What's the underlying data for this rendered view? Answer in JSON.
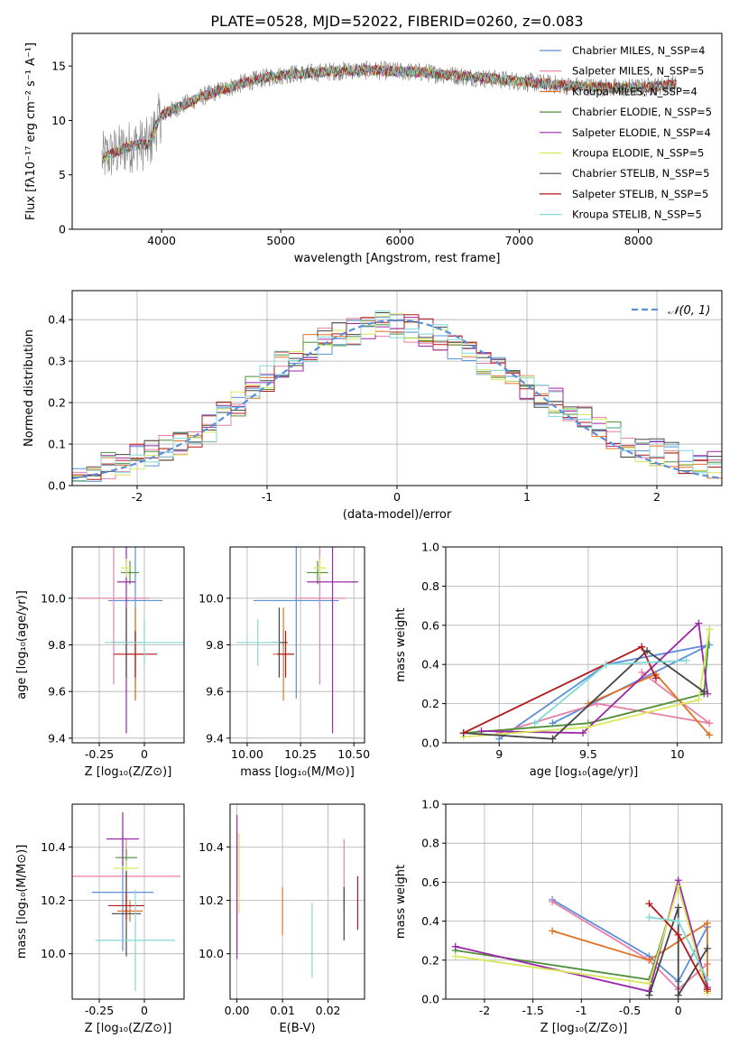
{
  "figure_title": "PLATE=0528, MJD=52022, FIBERID=0260, z=0.083",
  "colors": {
    "Chabrier MILES": "#5b8fd9",
    "Salpeter MILES": "#e87fa6",
    "Kroupa MILES": "#e07020",
    "Chabrier ELODIE": "#4f8f3a",
    "Salpeter ELODIE": "#9b28a8",
    "Kroupa ELODIE": "#d9e85a",
    "Chabrier STELIB": "#454545",
    "Salpeter STELIB": "#b0181a",
    "Kroupa STELIB": "#7fd9d6",
    "data": "#808080",
    "normal": "#5b8fd9"
  },
  "chart_data": [
    {
      "type": "line",
      "xlabel": "wavelength [Angstrom, rest frame]",
      "ylabel": "Flux [fλ10⁻¹⁷ erg cm⁻² s⁻¹ A⁻¹]",
      "xlim": [
        3250,
        8700
      ],
      "ylim": [
        0,
        18
      ],
      "xticks": [
        4000,
        5000,
        6000,
        7000,
        8000
      ],
      "yticks": [
        0,
        5,
        10,
        15
      ],
      "grid": false,
      "legend_position": "top-right",
      "legend": [
        "Chabrier MILES, N_SSP=4",
        "Salpeter MILES, N_SSP=5",
        "Kroupa MILES, N_SSP=4",
        "Chabrier ELODIE, N_SSP=5",
        "Salpeter ELODIE, N_SSP=4",
        "Kroupa ELODIE, N_SSP=5",
        "Chabrier STELIB, N_SSP=5",
        "Salpeter STELIB, N_SSP=5",
        "Kroupa STELIB, N_SSP=5"
      ],
      "continuum": {
        "x": [
          3500,
          3600,
          3700,
          3800,
          3900,
          3950,
          4000,
          4100,
          4300,
          4500,
          4700,
          4900,
          5100,
          5200,
          5400,
          5600,
          5800,
          6000,
          6200,
          6400,
          6600,
          6800,
          7000,
          7200,
          7400,
          7600,
          7800,
          8000,
          8200,
          8300
        ],
        "y": [
          6.5,
          7.0,
          7.5,
          7.8,
          7.8,
          9.5,
          10.5,
          11.0,
          12.0,
          12.8,
          13.5,
          14.0,
          14.3,
          14.3,
          14.5,
          14.6,
          14.6,
          14.5,
          14.4,
          14.2,
          14.0,
          13.8,
          13.6,
          13.4,
          13.2,
          13.1,
          13.0,
          13.0,
          13.2,
          13.3
        ]
      }
    },
    {
      "type": "histogram",
      "xlabel": "(data-model)/error",
      "ylabel": "Normed distribution",
      "xlim": [
        -2.5,
        2.5
      ],
      "ylim": [
        0,
        0.47
      ],
      "xticks": [
        -2,
        -1,
        0,
        1,
        2
      ],
      "yticks": [
        0.0,
        0.1,
        0.2,
        0.3,
        0.4
      ],
      "grid": true,
      "legend_position": "top-right",
      "legend": [
        "𝒩(0, 1)"
      ],
      "bins": [
        -2.5,
        2.5,
        45
      ],
      "approx_heights": [
        0.03,
        0.04,
        0.05,
        0.06,
        0.07,
        0.08,
        0.09,
        0.1,
        0.12,
        0.14,
        0.17,
        0.2,
        0.23,
        0.26,
        0.29,
        0.31,
        0.33,
        0.35,
        0.36,
        0.37,
        0.38,
        0.39,
        0.39,
        0.38,
        0.37,
        0.36,
        0.34,
        0.32,
        0.3,
        0.28,
        0.26,
        0.24,
        0.22,
        0.2,
        0.18,
        0.16,
        0.14,
        0.12,
        0.1,
        0.09,
        0.08,
        0.07,
        0.06,
        0.05,
        0.05
      ]
    },
    {
      "type": "scatter",
      "name": "age vs Z",
      "xlabel": "Z [log₁₀(Z/Z⊙)]",
      "ylabel": "age  [log₁₀(age/yr)]",
      "xlim": [
        -0.4,
        0.22
      ],
      "ylim": [
        9.38,
        10.22
      ],
      "xticks": [
        -0.25,
        0.0
      ],
      "ytick_labels": [
        "9.4",
        "9.6",
        "9.8",
        "10.0"
      ],
      "grid": true,
      "points": [
        {
          "model": "Chabrier MILES",
          "x": -0.05,
          "y": 9.99,
          "xerr": 0.15,
          "yerr": 0.42
        },
        {
          "model": "Salpeter MILES",
          "x": -0.17,
          "y": 10.0,
          "xerr": 0.2,
          "yerr": 0.37
        },
        {
          "model": "Kroupa MILES",
          "x": -0.05,
          "y": 9.76,
          "xerr": 0.05,
          "yerr": 0.2
        },
        {
          "model": "Chabrier ELODIE",
          "x": -0.08,
          "y": 10.11,
          "xerr": 0.05,
          "yerr": 0.05
        },
        {
          "model": "Salpeter ELODIE",
          "x": -0.1,
          "y": 10.07,
          "xerr": 0.05,
          "yerr": 0.65
        },
        {
          "model": "Kroupa ELODIE",
          "x": -0.1,
          "y": 10.13,
          "xerr": 0.03,
          "yerr": 0.04
        },
        {
          "model": "Chabrier STELIB",
          "x": -0.1,
          "y": 9.81,
          "xerr": 0.08,
          "yerr": 0.15
        },
        {
          "model": "Salpeter STELIB",
          "x": -0.05,
          "y": 9.76,
          "xerr": 0.12,
          "yerr": 0.1
        },
        {
          "model": "Kroupa STELIB",
          "x": 0.0,
          "y": 9.81,
          "xerr": 0.22,
          "yerr": 0.1
        }
      ]
    },
    {
      "type": "scatter",
      "name": "age vs mass",
      "xlabel": "mass [log₁₀(M/M⊙)]",
      "xlim": [
        9.92,
        10.55
      ],
      "ylim": [
        9.38,
        10.22
      ],
      "xticks": [
        10.0,
        10.25,
        10.5
      ],
      "xtick_labels": [
        "10.00",
        "10.25",
        "10.50"
      ],
      "ytick_labels": [
        "9.4",
        "9.6",
        "9.8",
        "10.0"
      ],
      "grid": true,
      "points": [
        {
          "model": "Chabrier MILES",
          "x": 10.23,
          "y": 9.99,
          "xerr": 0.2,
          "yerr": 0.42
        },
        {
          "model": "Salpeter MILES",
          "x": 10.34,
          "y": 10.0,
          "xerr": 0.12,
          "yerr": 0.37
        },
        {
          "model": "Kroupa MILES",
          "x": 10.17,
          "y": 9.76,
          "xerr": 0.05,
          "yerr": 0.2
        },
        {
          "model": "Chabrier ELODIE",
          "x": 10.33,
          "y": 10.11,
          "xerr": 0.05,
          "yerr": 0.05
        },
        {
          "model": "Salpeter ELODIE",
          "x": 10.4,
          "y": 10.07,
          "xerr": 0.12,
          "yerr": 0.65
        },
        {
          "model": "Kroupa ELODIE",
          "x": 10.34,
          "y": 10.13,
          "xerr": 0.03,
          "yerr": 0.04
        },
        {
          "model": "Chabrier STELIB",
          "x": 10.15,
          "y": 9.81,
          "xerr": 0.04,
          "yerr": 0.15
        },
        {
          "model": "Salpeter STELIB",
          "x": 10.18,
          "y": 9.76,
          "xerr": 0.04,
          "yerr": 0.1
        },
        {
          "model": "Kroupa STELIB",
          "x": 10.05,
          "y": 9.81,
          "xerr": 0.1,
          "yerr": 0.1
        }
      ]
    },
    {
      "type": "line",
      "name": "mass weight vs age",
      "xlabel": "age  [log₁₀(age/yr)]",
      "ylabel": "mass weight",
      "xlim": [
        8.7,
        10.25
      ],
      "ylim": [
        0,
        1
      ],
      "xticks": [
        9.0,
        9.5,
        10.0
      ],
      "ytick_labels": [
        "0.0",
        "0.2",
        "0.4",
        "0.6",
        "0.8",
        "1.0"
      ],
      "grid": true,
      "series": [
        {
          "model": "Chabrier MILES",
          "x": [
            9.0,
            9.6,
            10.18,
            9.3
          ],
          "y": [
            0.02,
            0.4,
            0.5,
            0.1
          ]
        },
        {
          "model": "Salpeter MILES",
          "x": [
            9.0,
            9.55,
            10.18,
            9.8
          ],
          "y": [
            0.05,
            0.2,
            0.1,
            0.36
          ]
        },
        {
          "model": "Kroupa MILES",
          "x": [
            9.5,
            9.88,
            10.18
          ],
          "y": [
            0.2,
            0.35,
            0.04
          ]
        },
        {
          "model": "Chabrier ELODIE",
          "x": [
            8.8,
            9.5,
            10.15,
            10.18
          ],
          "y": [
            0.05,
            0.1,
            0.25,
            0.58
          ]
        },
        {
          "model": "Salpeter ELODIE",
          "x": [
            8.9,
            9.47,
            10.12,
            10.17
          ],
          "y": [
            0.06,
            0.05,
            0.61,
            0.25
          ]
        },
        {
          "model": "Kroupa ELODIE",
          "x": [
            8.8,
            9.5,
            10.12,
            10.18
          ],
          "y": [
            0.03,
            0.08,
            0.22,
            0.58
          ]
        },
        {
          "model": "Chabrier STELIB",
          "x": [
            8.8,
            9.3,
            9.83,
            10.15
          ],
          "y": [
            0.05,
            0.02,
            0.47,
            0.26
          ]
        },
        {
          "model": "Salpeter STELIB",
          "x": [
            8.8,
            9.8,
            9.88
          ],
          "y": [
            0.05,
            0.49,
            0.33
          ]
        },
        {
          "model": "Kroupa STELIB",
          "x": [
            9.2,
            9.6,
            10.05
          ],
          "y": [
            0.1,
            0.4,
            0.42
          ]
        }
      ]
    },
    {
      "type": "scatter",
      "name": "mass vs Z",
      "xlabel": "Z [log₁₀(Z/Z⊙)]",
      "ylabel": "mass [log₁₀(M/M⊙)]",
      "xlim": [
        -0.4,
        0.22
      ],
      "ylim": [
        9.83,
        10.56
      ],
      "xticks": [
        -0.25,
        0.0
      ],
      "ytick_labels": [
        "10.0",
        "10.2",
        "10.4"
      ],
      "grid": true,
      "points": [
        {
          "model": "Chabrier MILES",
          "x": -0.12,
          "y": 10.23,
          "xerr": 0.17,
          "yerr": 0.22
        },
        {
          "model": "Salpeter MILES",
          "x": -0.1,
          "y": 10.29,
          "xerr": 0.3,
          "yerr": 0.14
        },
        {
          "model": "Kroupa MILES",
          "x": -0.08,
          "y": 10.16,
          "xerr": 0.07,
          "yerr": 0.04
        },
        {
          "model": "Chabrier ELODIE",
          "x": -0.1,
          "y": 10.36,
          "xerr": 0.06,
          "yerr": 0.03
        },
        {
          "model": "Salpeter ELODIE",
          "x": -0.12,
          "y": 10.43,
          "xerr": 0.09,
          "yerr": 0.1
        },
        {
          "model": "Kroupa ELODIE",
          "x": -0.1,
          "y": 10.32,
          "xerr": 0.07,
          "yerr": 0.03
        },
        {
          "model": "Chabrier STELIB",
          "x": -0.1,
          "y": 10.15,
          "xerr": 0.08,
          "yerr": 0.16
        },
        {
          "model": "Salpeter STELIB",
          "x": -0.1,
          "y": 10.18,
          "xerr": 0.1,
          "yerr": 0.05
        },
        {
          "model": "Kroupa STELIB",
          "x": -0.05,
          "y": 10.05,
          "xerr": 0.22,
          "yerr": 0.19
        }
      ]
    },
    {
      "type": "scatter",
      "name": "mass vs E(B-V)",
      "xlabel": "E(B-V)",
      "xlim": [
        -0.0015,
        0.028
      ],
      "ylim": [
        9.83,
        10.56
      ],
      "xticks": [
        0.0,
        0.01,
        0.02
      ],
      "xtick_labels": [
        "0.00",
        "0.01",
        "0.02"
      ],
      "ytick_labels": [
        "10.0",
        "10.2",
        "10.4"
      ],
      "grid": true,
      "points": [
        {
          "model": "Chabrier MILES",
          "x": 0.0,
          "y": 10.23,
          "xerr": 0,
          "yerr": 0.22
        },
        {
          "model": "Salpeter MILES",
          "x": 0.0235,
          "y": 10.29,
          "xerr": 0,
          "yerr": 0.14
        },
        {
          "model": "Kroupa MILES",
          "x": 0.01,
          "y": 10.16,
          "xerr": 0,
          "yerr": 0.09
        },
        {
          "model": "Chabrier ELODIE",
          "x": 0.0,
          "y": 10.36,
          "xerr": 0,
          "yerr": 0.1
        },
        {
          "model": "Salpeter ELODIE",
          "x": 0.0,
          "y": 10.25,
          "xerr": 0,
          "yerr": 0.27
        },
        {
          "model": "Kroupa ELODIE",
          "x": 0.0005,
          "y": 10.3,
          "xerr": 0,
          "yerr": 0.15
        },
        {
          "model": "Chabrier STELIB",
          "x": 0.0235,
          "y": 10.15,
          "xerr": 0,
          "yerr": 0.1
        },
        {
          "model": "Salpeter STELIB",
          "x": 0.0265,
          "y": 10.19,
          "xerr": 0,
          "yerr": 0.1
        },
        {
          "model": "Kroupa STELIB",
          "x": 0.0165,
          "y": 10.05,
          "xerr": 0,
          "yerr": 0.14
        }
      ]
    },
    {
      "type": "line",
      "name": "mass weight vs Z",
      "xlabel": "Z [log₁₀(Z/Z⊙)]",
      "ylabel": "mass weight",
      "xlim": [
        -2.4,
        0.45
      ],
      "ylim": [
        0,
        1
      ],
      "xticks": [
        -2.0,
        -1.5,
        -1.0,
        -0.5,
        0.0
      ],
      "ytick_labels": [
        "0.0",
        "0.2",
        "0.4",
        "0.6",
        "0.8",
        "1.0"
      ],
      "grid": true,
      "series": [
        {
          "model": "Chabrier MILES",
          "x": [
            -1.3,
            -0.3,
            0.0,
            0.3
          ],
          "y": [
            0.51,
            0.22,
            0.09,
            0.37
          ]
        },
        {
          "model": "Salpeter MILES",
          "x": [
            -1.3,
            -0.3,
            0.0,
            0.3
          ],
          "y": [
            0.5,
            0.2,
            0.05,
            0.18
          ]
        },
        {
          "model": "Kroupa MILES",
          "x": [
            -1.3,
            -0.3,
            0.3,
            0.3
          ],
          "y": [
            0.35,
            0.2,
            0.39,
            0.04
          ]
        },
        {
          "model": "Chabrier ELODIE",
          "x": [
            -2.3,
            -0.3,
            0.0,
            0.3
          ],
          "y": [
            0.25,
            0.1,
            0.58,
            0.05
          ]
        },
        {
          "model": "Salpeter ELODIE",
          "x": [
            -2.3,
            -0.3,
            0.0,
            0.3
          ],
          "y": [
            0.27,
            0.04,
            0.61,
            0.06
          ]
        },
        {
          "model": "Kroupa ELODIE",
          "x": [
            -2.3,
            -0.3,
            0.0,
            0.3
          ],
          "y": [
            0.22,
            0.08,
            0.58,
            0.03
          ]
        },
        {
          "model": "Chabrier STELIB",
          "x": [
            -0.3,
            0.0,
            0.0,
            0.3
          ],
          "y": [
            0.02,
            0.47,
            0.02,
            0.26
          ]
        },
        {
          "model": "Salpeter STELIB",
          "x": [
            -0.3,
            0.0,
            0.3
          ],
          "y": [
            0.49,
            0.33,
            0.05
          ]
        },
        {
          "model": "Kroupa STELIB",
          "x": [
            -0.3,
            0.0,
            0.3
          ],
          "y": [
            0.42,
            0.4,
            0.1
          ]
        }
      ]
    }
  ]
}
